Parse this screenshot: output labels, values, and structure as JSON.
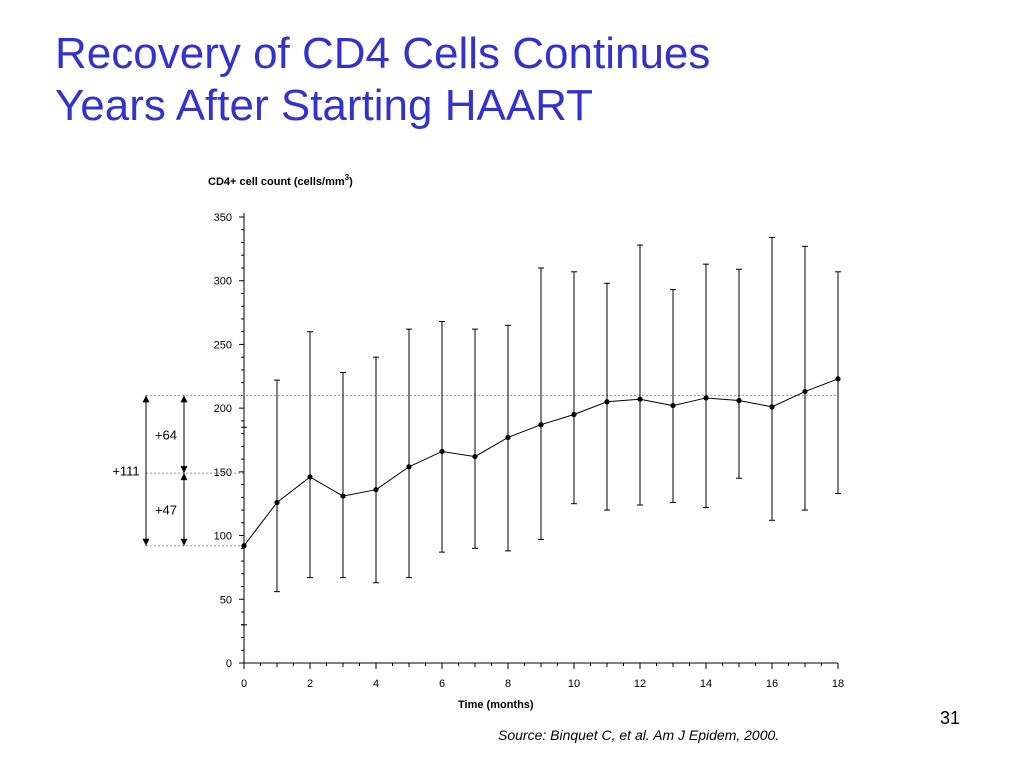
{
  "slide": {
    "title": "Recovery of CD4 Cells Continues\nYears After Starting HAART",
    "page_number": "31",
    "source": "Source: Binquet C, et al.  Am J Epidem, 2000."
  },
  "colors": {
    "title": "#3333cc",
    "ink": "#000000",
    "guide": "#999999"
  },
  "chart_data": {
    "type": "line",
    "title": "",
    "ylabel": "CD4+ cell count (cells/mm",
    "ylabel_superscript": "3",
    "ylabel_close": ")",
    "xlabel": "Time (months)",
    "xlim": [
      0,
      18
    ],
    "ylim": [
      0,
      350
    ],
    "x_ticks": [
      0,
      2,
      4,
      6,
      8,
      10,
      12,
      14,
      16,
      18
    ],
    "y_ticks": [
      0,
      50,
      100,
      150,
      200,
      250,
      300,
      350
    ],
    "grid": false,
    "series": [
      {
        "x": [
          0,
          1,
          2,
          3,
          4,
          5,
          6,
          7,
          8,
          9,
          10,
          11,
          12,
          13,
          14,
          15,
          16,
          17,
          18
        ],
        "values": [
          92,
          126,
          146,
          131,
          136,
          154,
          166,
          162,
          177,
          187,
          195,
          205,
          207,
          202,
          208,
          206,
          201,
          213,
          223
        ],
        "error_low": [
          30,
          56,
          67,
          67,
          63,
          67,
          87,
          90,
          88,
          97,
          125,
          120,
          124,
          126,
          122,
          145,
          112,
          120,
          133
        ],
        "error_high": [
          185,
          222,
          260,
          228,
          240,
          262,
          268,
          262,
          265,
          310,
          307,
          298,
          328,
          293,
          313,
          309,
          334,
          327,
          307
        ]
      }
    ],
    "annotations": [
      {
        "text": "+64",
        "from": 149,
        "to": 210
      },
      {
        "text": "+47",
        "from": 92,
        "to": 149
      },
      {
        "text": "+111",
        "from": 92,
        "to": 210
      }
    ],
    "reference_lines": [
      210,
      149,
      92
    ]
  }
}
